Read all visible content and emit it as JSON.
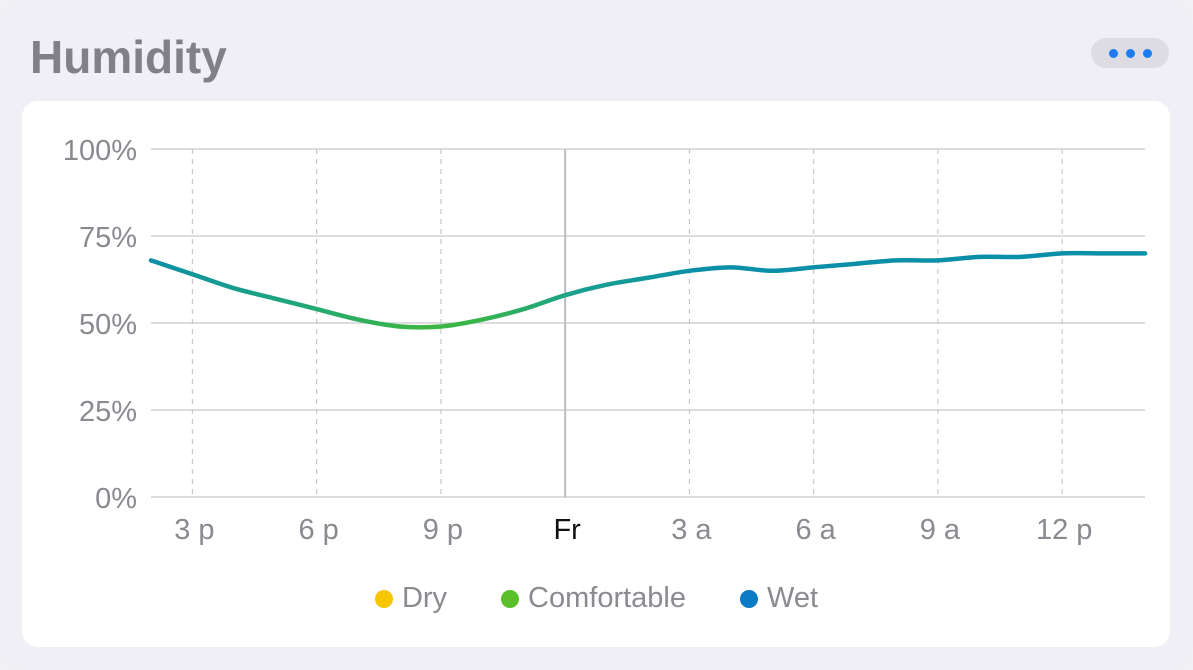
{
  "widget": {
    "title": "Humidity",
    "more_icon": "ellipsis-icon"
  },
  "colors": {
    "dry": "#f7c600",
    "comfortable": "#5bbf2b",
    "wet": "#0a7bc4",
    "line_wet": "#0a8fa8",
    "accent": "#1d7cf2"
  },
  "chart_data": {
    "type": "line",
    "title": "",
    "xlabel": "",
    "ylabel": "",
    "ylim": [
      0,
      100
    ],
    "y_ticks": [
      "0%",
      "25%",
      "50%",
      "75%",
      "100%"
    ],
    "x_range": [
      14,
      38
    ],
    "x_ticks": [
      {
        "x": 15,
        "label": "3 p",
        "major": false
      },
      {
        "x": 18,
        "label": "6 p",
        "major": false
      },
      {
        "x": 21,
        "label": "9 p",
        "major": false
      },
      {
        "x": 24,
        "label": "Fr",
        "major": true
      },
      {
        "x": 27,
        "label": "3 a",
        "major": false
      },
      {
        "x": 30,
        "label": "6 a",
        "major": false
      },
      {
        "x": 33,
        "label": "9 a",
        "major": false
      },
      {
        "x": 36,
        "label": "12 p",
        "major": false
      }
    ],
    "series": [
      {
        "x": [
          14,
          15,
          16,
          17,
          18,
          19,
          20,
          21,
          22,
          23,
          24,
          25,
          26,
          27,
          28,
          29,
          30,
          31,
          32,
          33,
          34,
          35,
          36,
          37,
          38
        ],
        "values": [
          68,
          64,
          60,
          57,
          54,
          51,
          49,
          49,
          51,
          54,
          58,
          61,
          63,
          65,
          66,
          65,
          66,
          67,
          68,
          68,
          69,
          69,
          70,
          70,
          70
        ]
      }
    ],
    "legend": [
      "Dry",
      "Comfortable",
      "Wet"
    ],
    "grid": true,
    "legend_position": "bottom"
  }
}
